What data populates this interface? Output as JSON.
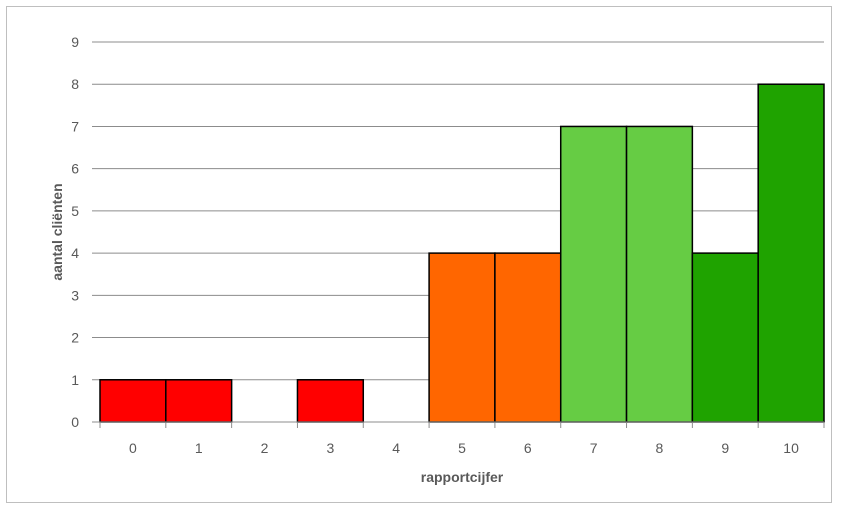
{
  "chart_data": {
    "type": "bar",
    "categories": [
      "0",
      "1",
      "2",
      "3",
      "4",
      "5",
      "6",
      "7",
      "8",
      "9",
      "10"
    ],
    "values": [
      1,
      1,
      0,
      1,
      0,
      4,
      4,
      7,
      7,
      4,
      8
    ],
    "bar_colors": [
      "#ff0000",
      "#ff0000",
      "#ff0000",
      "#ff0000",
      "#ff0000",
      "#ff6600",
      "#ff6600",
      "#66cc44",
      "#66cc44",
      "#1fa300",
      "#1fa300"
    ],
    "xlabel": "rapportcijfer",
    "ylabel": "aantal cliënten",
    "ylim": [
      0,
      9
    ],
    "yticks": [
      "0",
      "1",
      "2",
      "3",
      "4",
      "5",
      "6",
      "7",
      "8",
      "9"
    ],
    "grid": true
  }
}
